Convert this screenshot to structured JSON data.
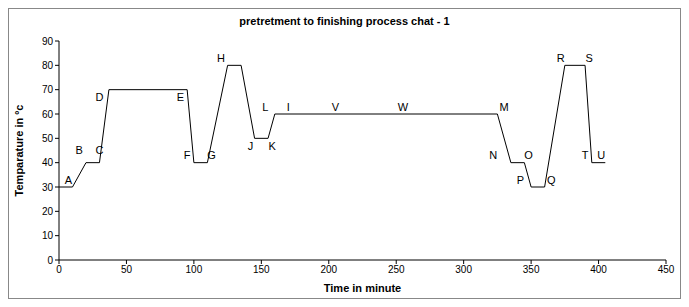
{
  "chart_data": {
    "type": "line",
    "title": "pretretment to finishing process chat - 1",
    "x_label": "Time in minute",
    "y_label": "Temparature in ºc",
    "x": [
      0,
      10,
      20,
      30,
      37,
      95,
      100,
      110,
      125,
      135,
      145,
      155,
      160,
      325,
      335,
      345,
      350,
      360,
      375,
      390,
      395,
      405
    ],
    "values": [
      30,
      30,
      40,
      40,
      70,
      70,
      40,
      40,
      80,
      80,
      50,
      50,
      60,
      60,
      40,
      40,
      30,
      30,
      80,
      80,
      40,
      40
    ],
    "color": "#000000",
    "xlim": [
      0,
      450
    ],
    "xticks": [
      0,
      50,
      100,
      150,
      200,
      250,
      300,
      350,
      400,
      450
    ],
    "ylim": [
      0,
      90
    ],
    "yticks": [
      0,
      10,
      20,
      30,
      40,
      50,
      60,
      70,
      80,
      90
    ],
    "grid": false,
    "annotations": [
      {
        "text": "A",
        "x": 7,
        "y": 33
      },
      {
        "text": "B",
        "x": 15,
        "y": 45
      },
      {
        "text": "C",
        "x": 30,
        "y": 45
      },
      {
        "text": "D",
        "x": 30,
        "y": 67
      },
      {
        "text": "E",
        "x": 90,
        "y": 67
      },
      {
        "text": "F",
        "x": 95,
        "y": 43
      },
      {
        "text": "G",
        "x": 113,
        "y": 43
      },
      {
        "text": "H",
        "x": 120,
        "y": 83
      },
      {
        "text": "J",
        "x": 142,
        "y": 47
      },
      {
        "text": "K",
        "x": 158,
        "y": 47
      },
      {
        "text": "L",
        "x": 153,
        "y": 63
      },
      {
        "text": "I",
        "x": 170,
        "y": 63
      },
      {
        "text": "V",
        "x": 205,
        "y": 63
      },
      {
        "text": "W",
        "x": 255,
        "y": 63
      },
      {
        "text": "M",
        "x": 330,
        "y": 63
      },
      {
        "text": "N",
        "x": 322,
        "y": 43
      },
      {
        "text": "O",
        "x": 348,
        "y": 43
      },
      {
        "text": "P",
        "x": 342,
        "y": 33
      },
      {
        "text": "Q",
        "x": 365,
        "y": 33
      },
      {
        "text": "R",
        "x": 372,
        "y": 83
      },
      {
        "text": "S",
        "x": 393,
        "y": 83
      },
      {
        "text": "T",
        "x": 390,
        "y": 43
      },
      {
        "text": "U",
        "x": 402,
        "y": 43
      }
    ]
  }
}
